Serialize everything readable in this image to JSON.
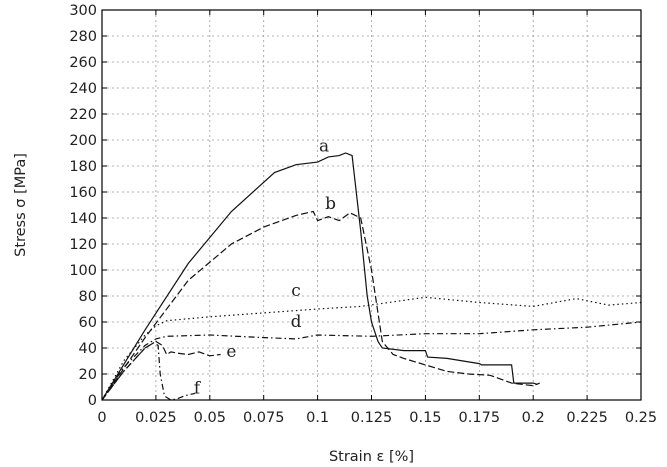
{
  "chart_data": {
    "type": "line",
    "title": "",
    "xlabel": "Strain ε [%]",
    "ylabel": "Stress σ [MPa]",
    "xlim": [
      0,
      0.25
    ],
    "ylim": [
      0,
      300
    ],
    "grid": true,
    "legend": "none",
    "x_ticks": [
      "0",
      "0.025",
      "0.05",
      "0.075",
      "0.1",
      "0.125",
      "0.15",
      "0.175",
      "0.2",
      "0.225",
      "0.25"
    ],
    "x_tick_values": [
      0,
      0.025,
      0.05,
      0.075,
      0.1,
      0.125,
      0.15,
      0.175,
      0.2,
      0.225,
      0.25
    ],
    "y_ticks": [
      "0",
      "20",
      "40",
      "60",
      "80",
      "100",
      "120",
      "140",
      "160",
      "180",
      "200",
      "220",
      "240",
      "260",
      "280",
      "300"
    ],
    "y_tick_values": [
      0,
      20,
      40,
      60,
      80,
      100,
      120,
      140,
      160,
      180,
      200,
      220,
      240,
      260,
      280,
      300
    ],
    "series": [
      {
        "label": "a",
        "label_at": [
          0.103,
          191
        ],
        "dash": "solid",
        "x": [
          0,
          0.02,
          0.04,
          0.06,
          0.08,
          0.09,
          0.1,
          0.105,
          0.11,
          0.113,
          0.116,
          0.12,
          0.123,
          0.125,
          0.128,
          0.13,
          0.14,
          0.15,
          0.151,
          0.16,
          0.175,
          0.176,
          0.19,
          0.191,
          0.2,
          0.202
        ],
        "y": [
          0,
          54,
          105,
          145,
          175,
          181,
          183,
          187,
          188,
          190,
          188,
          130,
          80,
          60,
          45,
          40,
          38,
          38,
          33,
          32,
          28,
          27,
          27,
          13,
          13,
          12
        ]
      },
      {
        "label": "b",
        "label_at": [
          0.106,
          147
        ],
        "dash": "longdash",
        "x": [
          0,
          0.02,
          0.04,
          0.06,
          0.075,
          0.09,
          0.098,
          0.1,
          0.105,
          0.11,
          0.115,
          0.12,
          0.125,
          0.13,
          0.135,
          0.14,
          0.15,
          0.16,
          0.17,
          0.18,
          0.185,
          0.19,
          0.2,
          0.203
        ],
        "y": [
          0,
          48,
          92,
          120,
          133,
          142,
          145,
          138,
          141,
          138,
          144,
          140,
          100,
          45,
          35,
          32,
          27,
          22,
          20,
          19,
          16,
          13,
          11,
          13
        ]
      },
      {
        "label": "c",
        "label_at": [
          0.09,
          80
        ],
        "dash": "dot",
        "x": [
          0,
          0.01,
          0.02,
          0.025,
          0.03,
          0.05,
          0.075,
          0.1,
          0.12,
          0.15,
          0.175,
          0.2,
          0.22,
          0.235,
          0.25
        ],
        "y": [
          0,
          30,
          50,
          57,
          61,
          64,
          67,
          70,
          72,
          79,
          75,
          72,
          78,
          73,
          75
        ]
      },
      {
        "label": "d",
        "label_at": [
          0.09,
          56
        ],
        "dash": "dashdot",
        "x": [
          0,
          0.01,
          0.02,
          0.025,
          0.03,
          0.05,
          0.075,
          0.09,
          0.1,
          0.125,
          0.15,
          0.175,
          0.2,
          0.225,
          0.25
        ],
        "y": [
          0,
          25,
          42,
          47,
          49,
          50,
          48,
          47,
          50,
          49,
          51,
          51,
          54,
          56,
          60
        ]
      },
      {
        "label": "e",
        "label_at": [
          0.06,
          33
        ],
        "dash": "longdash",
        "x": [
          0,
          0.01,
          0.02,
          0.025,
          0.028,
          0.03,
          0.032,
          0.035,
          0.04,
          0.045,
          0.05,
          0.055
        ],
        "y": [
          0,
          22,
          40,
          45,
          42,
          35,
          37,
          36,
          35,
          37,
          34,
          35
        ]
      },
      {
        "label": "f",
        "label_at": [
          0.044,
          5
        ],
        "dash": "dashdot",
        "x": [
          0,
          0.01,
          0.02,
          0.024,
          0.026,
          0.027,
          0.029,
          0.032,
          0.035,
          0.038,
          0.04,
          0.043
        ],
        "y": [
          0,
          22,
          40,
          44,
          42,
          20,
          3,
          0,
          1,
          3,
          4,
          5
        ]
      }
    ]
  }
}
